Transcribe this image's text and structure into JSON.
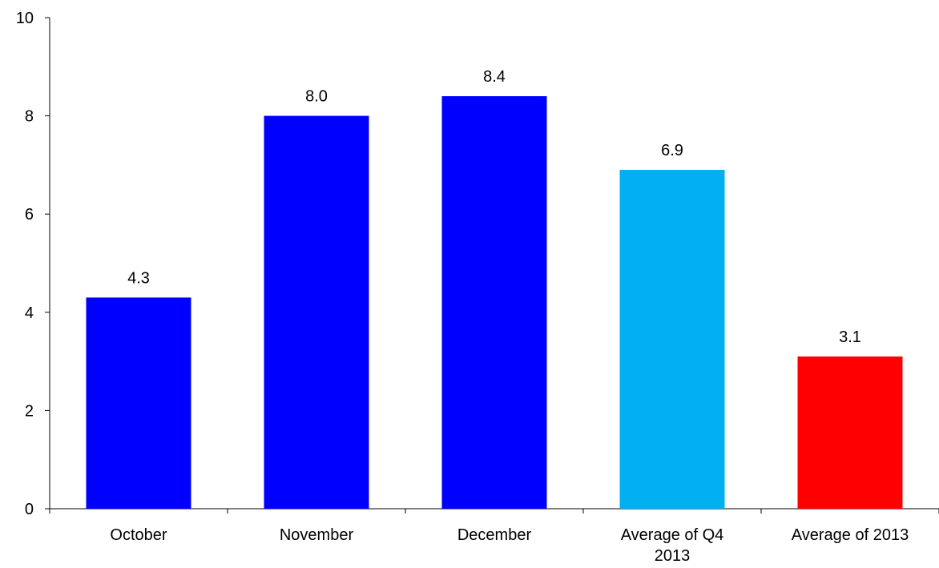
{
  "chart_data": {
    "type": "bar",
    "categories": [
      [
        "October"
      ],
      [
        "November"
      ],
      [
        "December"
      ],
      [
        "Average of Q4",
        "2013"
      ],
      [
        "Average of 2013"
      ]
    ],
    "values": [
      4.3,
      8.0,
      8.4,
      6.9,
      3.1
    ],
    "value_labels": [
      "4.3",
      "8.0",
      "8.4",
      "6.9",
      "3.1"
    ],
    "bar_colors": [
      "#0000FF",
      "#0000FF",
      "#0000FF",
      "#00B0F0",
      "#FF0000"
    ],
    "ylim": [
      0,
      10
    ],
    "yticks": [
      "0",
      "2",
      "4",
      "6",
      "8",
      "10"
    ],
    "title": "",
    "xlabel": "",
    "ylabel": "",
    "grid": false,
    "legend": "none"
  }
}
